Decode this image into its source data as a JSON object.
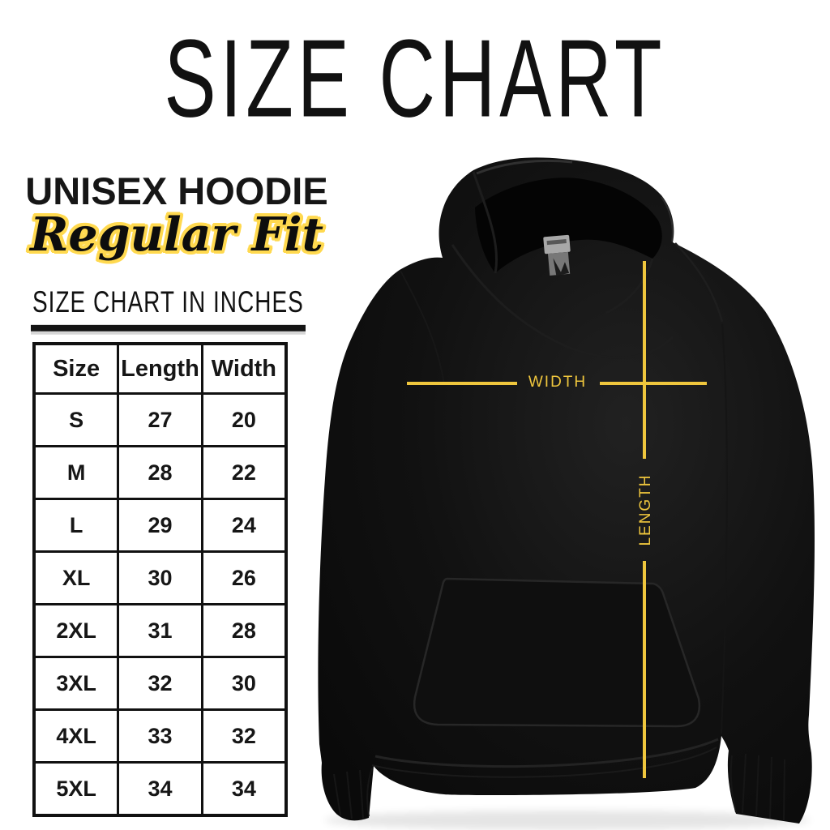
{
  "page": {
    "title": "SIZE CHART",
    "product": "UNISEX HOODIE",
    "fit": "Regular Fit",
    "table_heading": "SIZE CHART IN INCHES"
  },
  "size_table": {
    "columns": [
      "Size",
      "Length",
      "Width"
    ],
    "rows": [
      [
        "S",
        "27",
        "20"
      ],
      [
        "M",
        "28",
        "22"
      ],
      [
        "L",
        "29",
        "24"
      ],
      [
        "XL",
        "30",
        "26"
      ],
      [
        "2XL",
        "31",
        "28"
      ],
      [
        "3XL",
        "32",
        "30"
      ],
      [
        "4XL",
        "33",
        "32"
      ],
      [
        "5XL",
        "34",
        "34"
      ]
    ]
  },
  "diagram": {
    "width_label": "WIDTH",
    "length_label": "LENGTH"
  },
  "colors": {
    "accent_gold": "#EFC63D",
    "script_outline_yellow": "#FFD94F",
    "text_black": "#111111",
    "hoodie_black": "#101010",
    "background": "#FFFFFF"
  }
}
